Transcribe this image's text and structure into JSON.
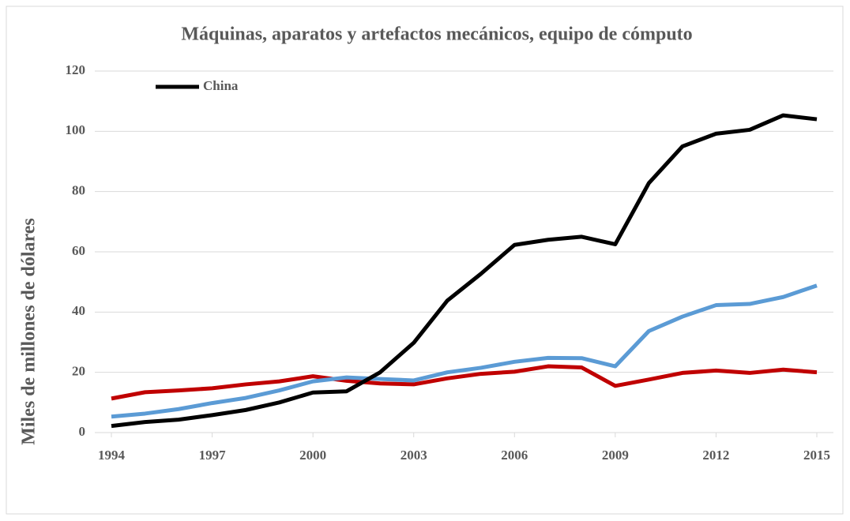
{
  "chart_data": {
    "type": "line",
    "title": "Máquinas, aparatos y artefactos mecánicos, equipo de cómputo",
    "y_label": "Miles de millones de dólares",
    "x": [
      1994,
      1995,
      1996,
      1997,
      1998,
      1999,
      2000,
      2001,
      2002,
      2003,
      2004,
      2005,
      2006,
      2007,
      2008,
      2009,
      2010,
      2011,
      2012,
      2013,
      2014,
      2015
    ],
    "xlim": [
      1994,
      2015
    ],
    "xticks": [
      1994,
      1997,
      2000,
      2003,
      2006,
      2009,
      2012,
      2015
    ],
    "ylim": [
      0,
      120
    ],
    "yticks": [
      0,
      20,
      40,
      60,
      80,
      100,
      120
    ],
    "grid": true,
    "legend": "upper left",
    "series": [
      {
        "name": "China",
        "color": "#000000",
        "values": [
          2.2,
          3.5,
          4.3,
          5.8,
          7.5,
          10,
          13.3,
          13.7,
          20,
          29.8,
          43.8,
          52.7,
          62.3,
          64,
          65,
          62.5,
          82.8,
          95,
          99.2,
          100.5,
          105.3,
          104
        ]
      },
      {
        "color": "#5b9bd5",
        "values": [
          5.3,
          6.3,
          7.8,
          9.8,
          11.5,
          14,
          17,
          18.3,
          17.8,
          17.3,
          20,
          21.5,
          23.5,
          24.8,
          24.7,
          22,
          33.7,
          38.5,
          42.3,
          42.7,
          45,
          48.8
        ]
      },
      {
        "color": "#c00000",
        "values": [
          11.3,
          13.4,
          14,
          14.7,
          16,
          17,
          18.7,
          17.2,
          16.3,
          16,
          18,
          19.5,
          20.2,
          22,
          21.6,
          15.5,
          17.6,
          19.8,
          20.6,
          19.8,
          20.9,
          20
        ]
      }
    ]
  }
}
